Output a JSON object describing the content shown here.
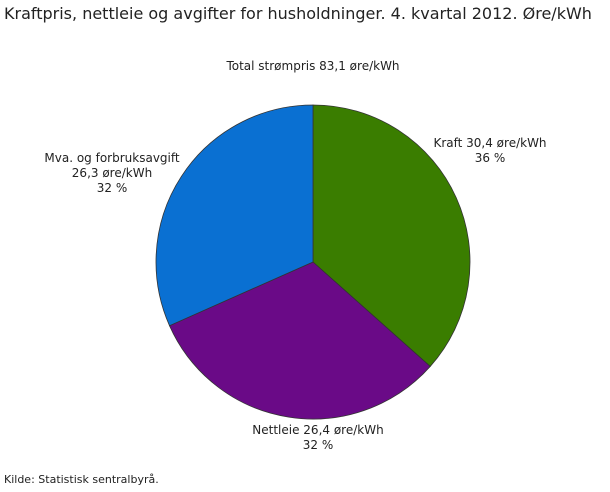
{
  "chart_data": {
    "type": "pie",
    "title": "Kraftpris, nettleie og avgifter for husholdninger. 4. kvartal 2012. Øre/kWh",
    "annotation": "Total strømpris 83,1 øre/kWh",
    "source": "Kilde: Statistisk sentralbyrå.",
    "categories": [
      "Kraft",
      "Nettleie",
      "Mva. og forbruksavgift"
    ],
    "values": [
      30.4,
      26.4,
      26.3
    ],
    "value_labels": [
      "30,4 øre/kWh",
      "26,4 øre/kWh",
      "26,3 øre/kWh"
    ],
    "percents": [
      36,
      32,
      32
    ],
    "percent_labels": [
      "36 %",
      "32 %",
      "32 %"
    ],
    "colors": [
      "#3a7d00",
      "#6a0a87",
      "#0a70d2"
    ]
  }
}
